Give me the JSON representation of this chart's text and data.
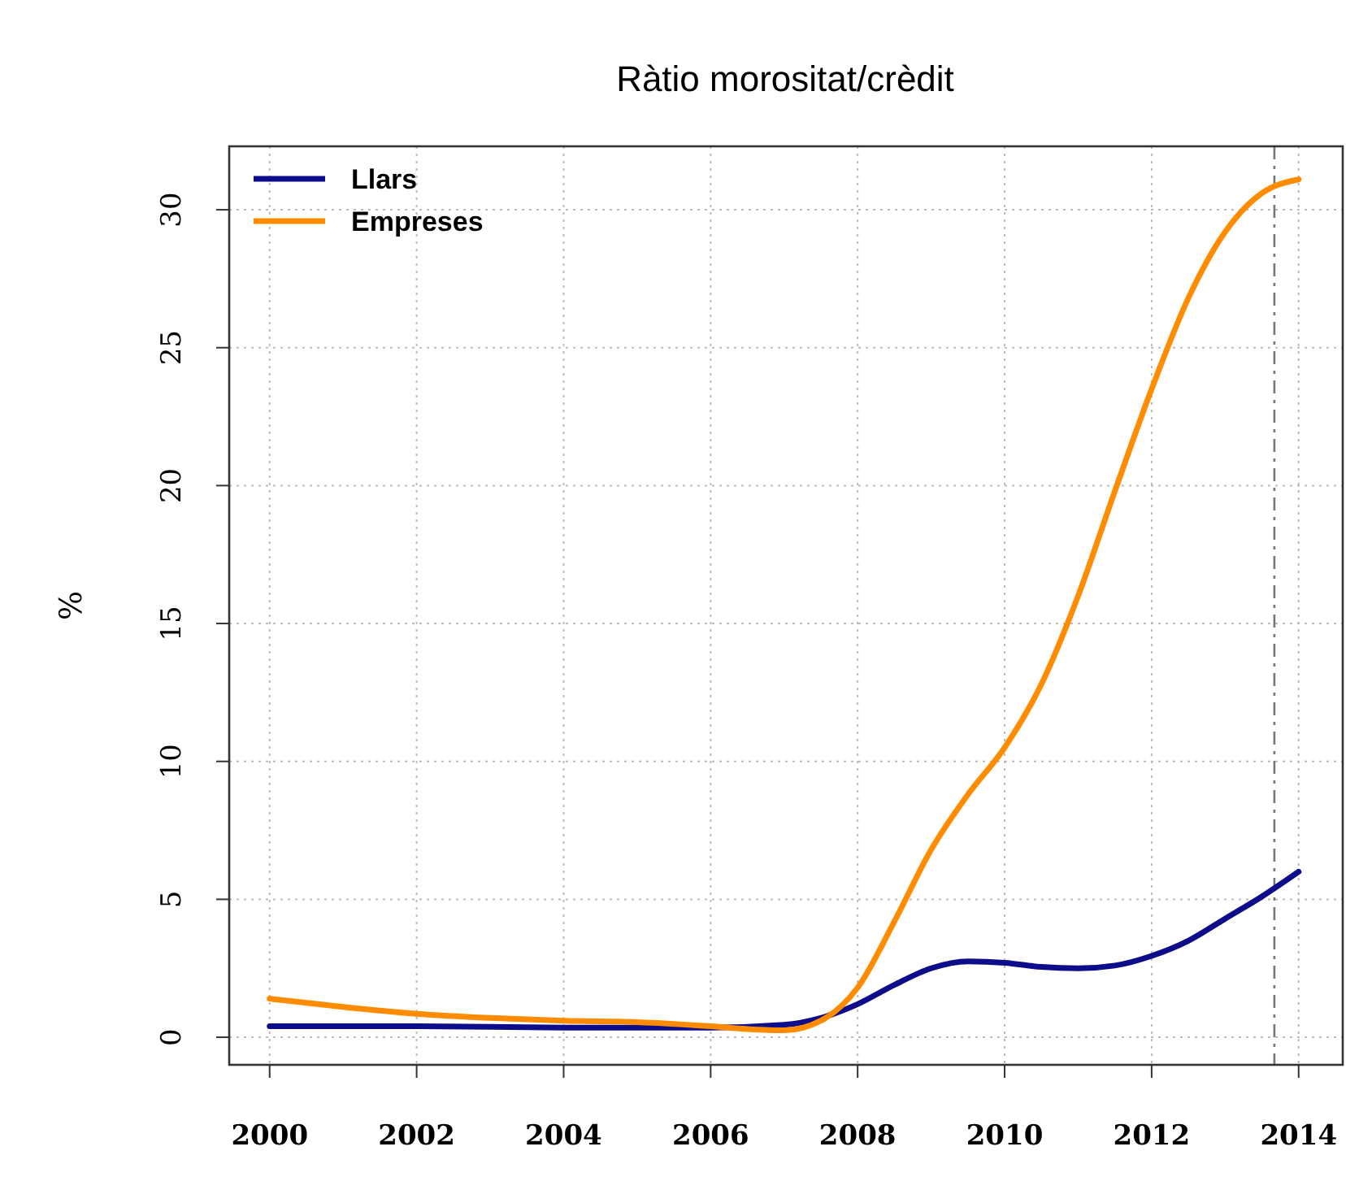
{
  "chart_data": {
    "type": "line",
    "title": "Ràtio morositat/crèdit",
    "ylabel": "%",
    "xlim": [
      1999.45,
      2014.6
    ],
    "xticks": [
      2000,
      2002,
      2004,
      2006,
      2008,
      2010,
      2012,
      2014
    ],
    "ylim": [
      -1,
      32.3
    ],
    "yticks": [
      0,
      5,
      10,
      15,
      20,
      25,
      30
    ],
    "grid": true,
    "legend": "top left",
    "line_style": "solid",
    "marker": "none",
    "ref_lines": [
      {
        "axis": "x",
        "value": 2013.67,
        "line_style": "dashed",
        "color": "#777777"
      }
    ],
    "series": [
      {
        "name": "Llars",
        "color": "#0d0d8c",
        "x": [
          2000,
          2002,
          2004,
          2006,
          2007,
          2007.5,
          2008,
          2008.5,
          2009,
          2009.5,
          2010,
          2010.5,
          2011,
          2011.5,
          2012,
          2012.5,
          2013,
          2013.5,
          2014
        ],
        "values": [
          0.4,
          0.4,
          0.35,
          0.35,
          0.45,
          0.7,
          1.2,
          1.9,
          2.5,
          2.75,
          2.7,
          2.55,
          2.5,
          2.6,
          2.95,
          3.5,
          4.3,
          5.1,
          6.0
        ]
      },
      {
        "name": "Empreses",
        "color": "#ff8c00",
        "x": [
          2000,
          2001,
          2002,
          2003,
          2004,
          2005,
          2006,
          2006.5,
          2007,
          2007.5,
          2008,
          2008.5,
          2009,
          2009.5,
          2010,
          2010.5,
          2011,
          2011.5,
          2012,
          2012.5,
          2013,
          2013.5,
          2014
        ],
        "values": [
          1.4,
          1.1,
          0.85,
          0.7,
          0.6,
          0.55,
          0.4,
          0.3,
          0.25,
          0.6,
          1.8,
          4.2,
          6.8,
          8.8,
          10.5,
          12.8,
          16,
          19.8,
          23.5,
          26.8,
          29.2,
          30.6,
          31.1
        ]
      }
    ]
  }
}
